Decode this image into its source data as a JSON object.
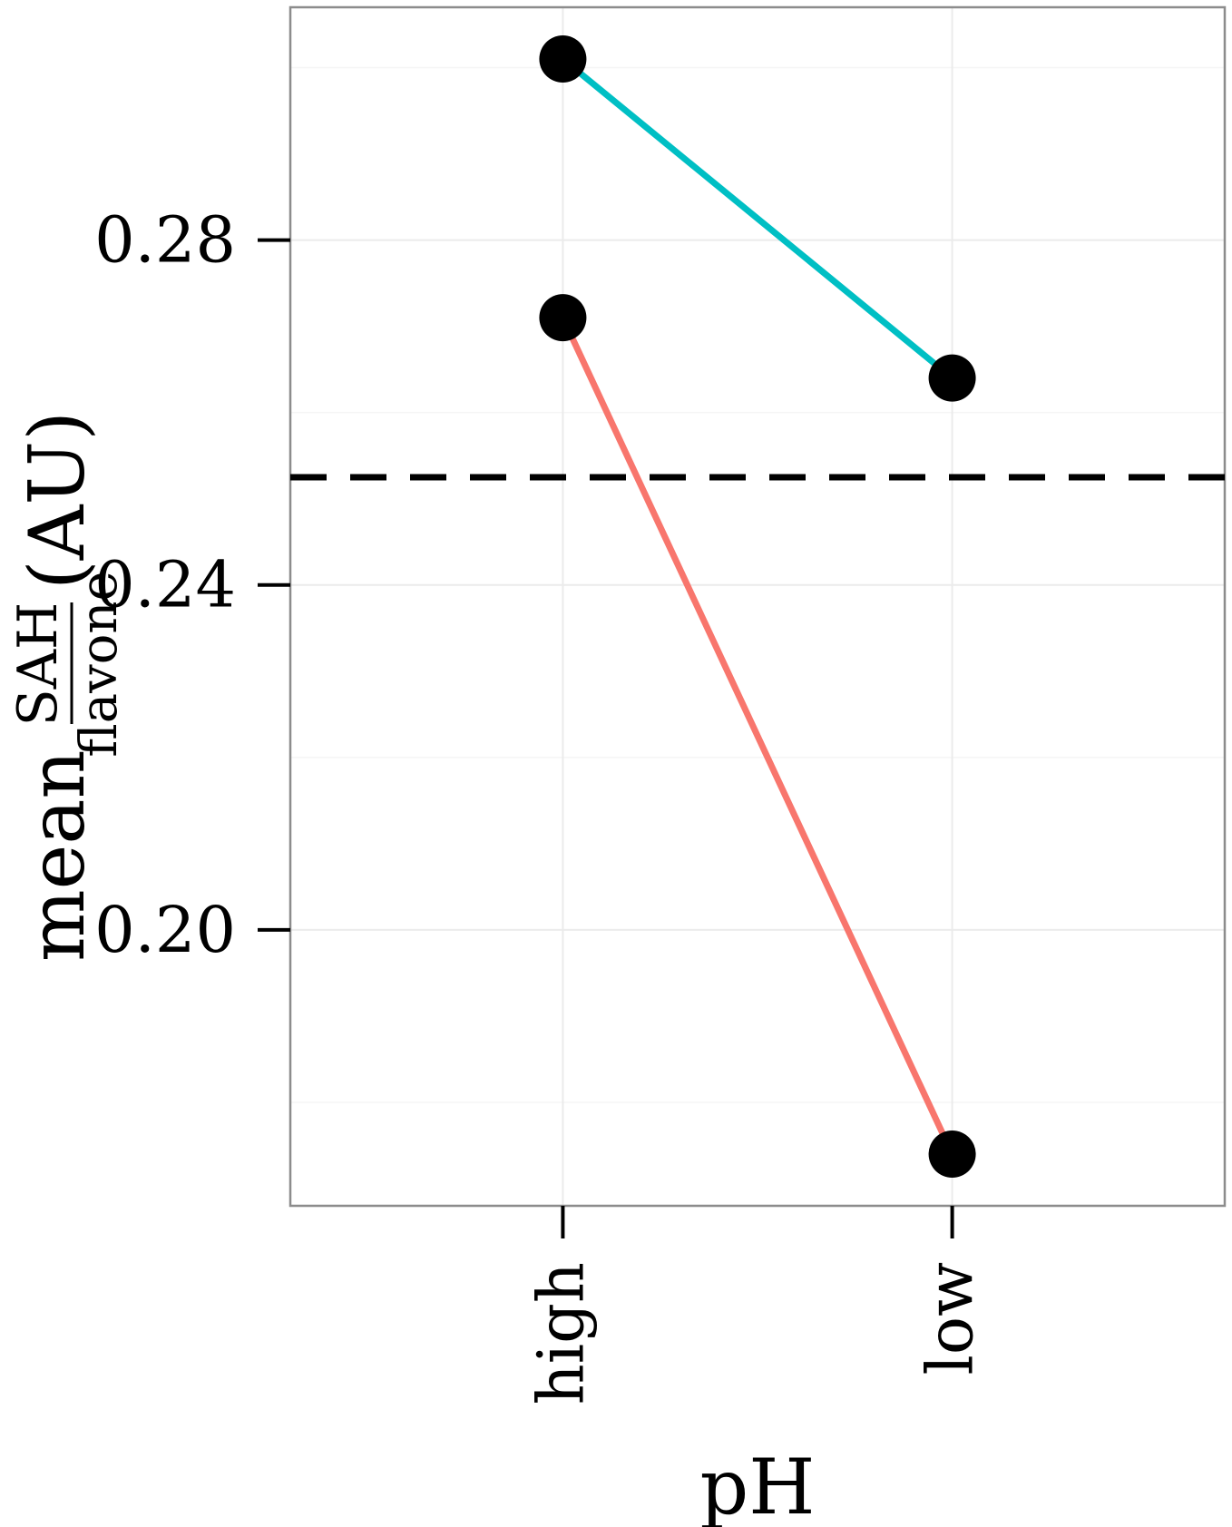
{
  "chart_data": {
    "type": "line",
    "title": "",
    "xlabel": "pH",
    "ylabel": {
      "prefix": "mean",
      "numerator": "SAH",
      "denominator": "flavone",
      "suffix": "(AU)"
    },
    "categories": [
      "high",
      "low"
    ],
    "series": [
      {
        "color": "#00BFC4",
        "values": [
          0.301,
          0.264
        ]
      },
      {
        "color": "#F8766D",
        "values": [
          0.271,
          0.174
        ]
      }
    ],
    "reference_line": {
      "y": 0.2525,
      "style": "dashed",
      "color": "#000000"
    },
    "ylim": [
      0.168,
      0.307
    ],
    "yticks": [
      0.2,
      0.24,
      0.28
    ],
    "ytick_labels": [
      "0.20",
      "0.24",
      "0.28"
    ],
    "grid": true,
    "legend": "none",
    "point_color": "#000000"
  }
}
